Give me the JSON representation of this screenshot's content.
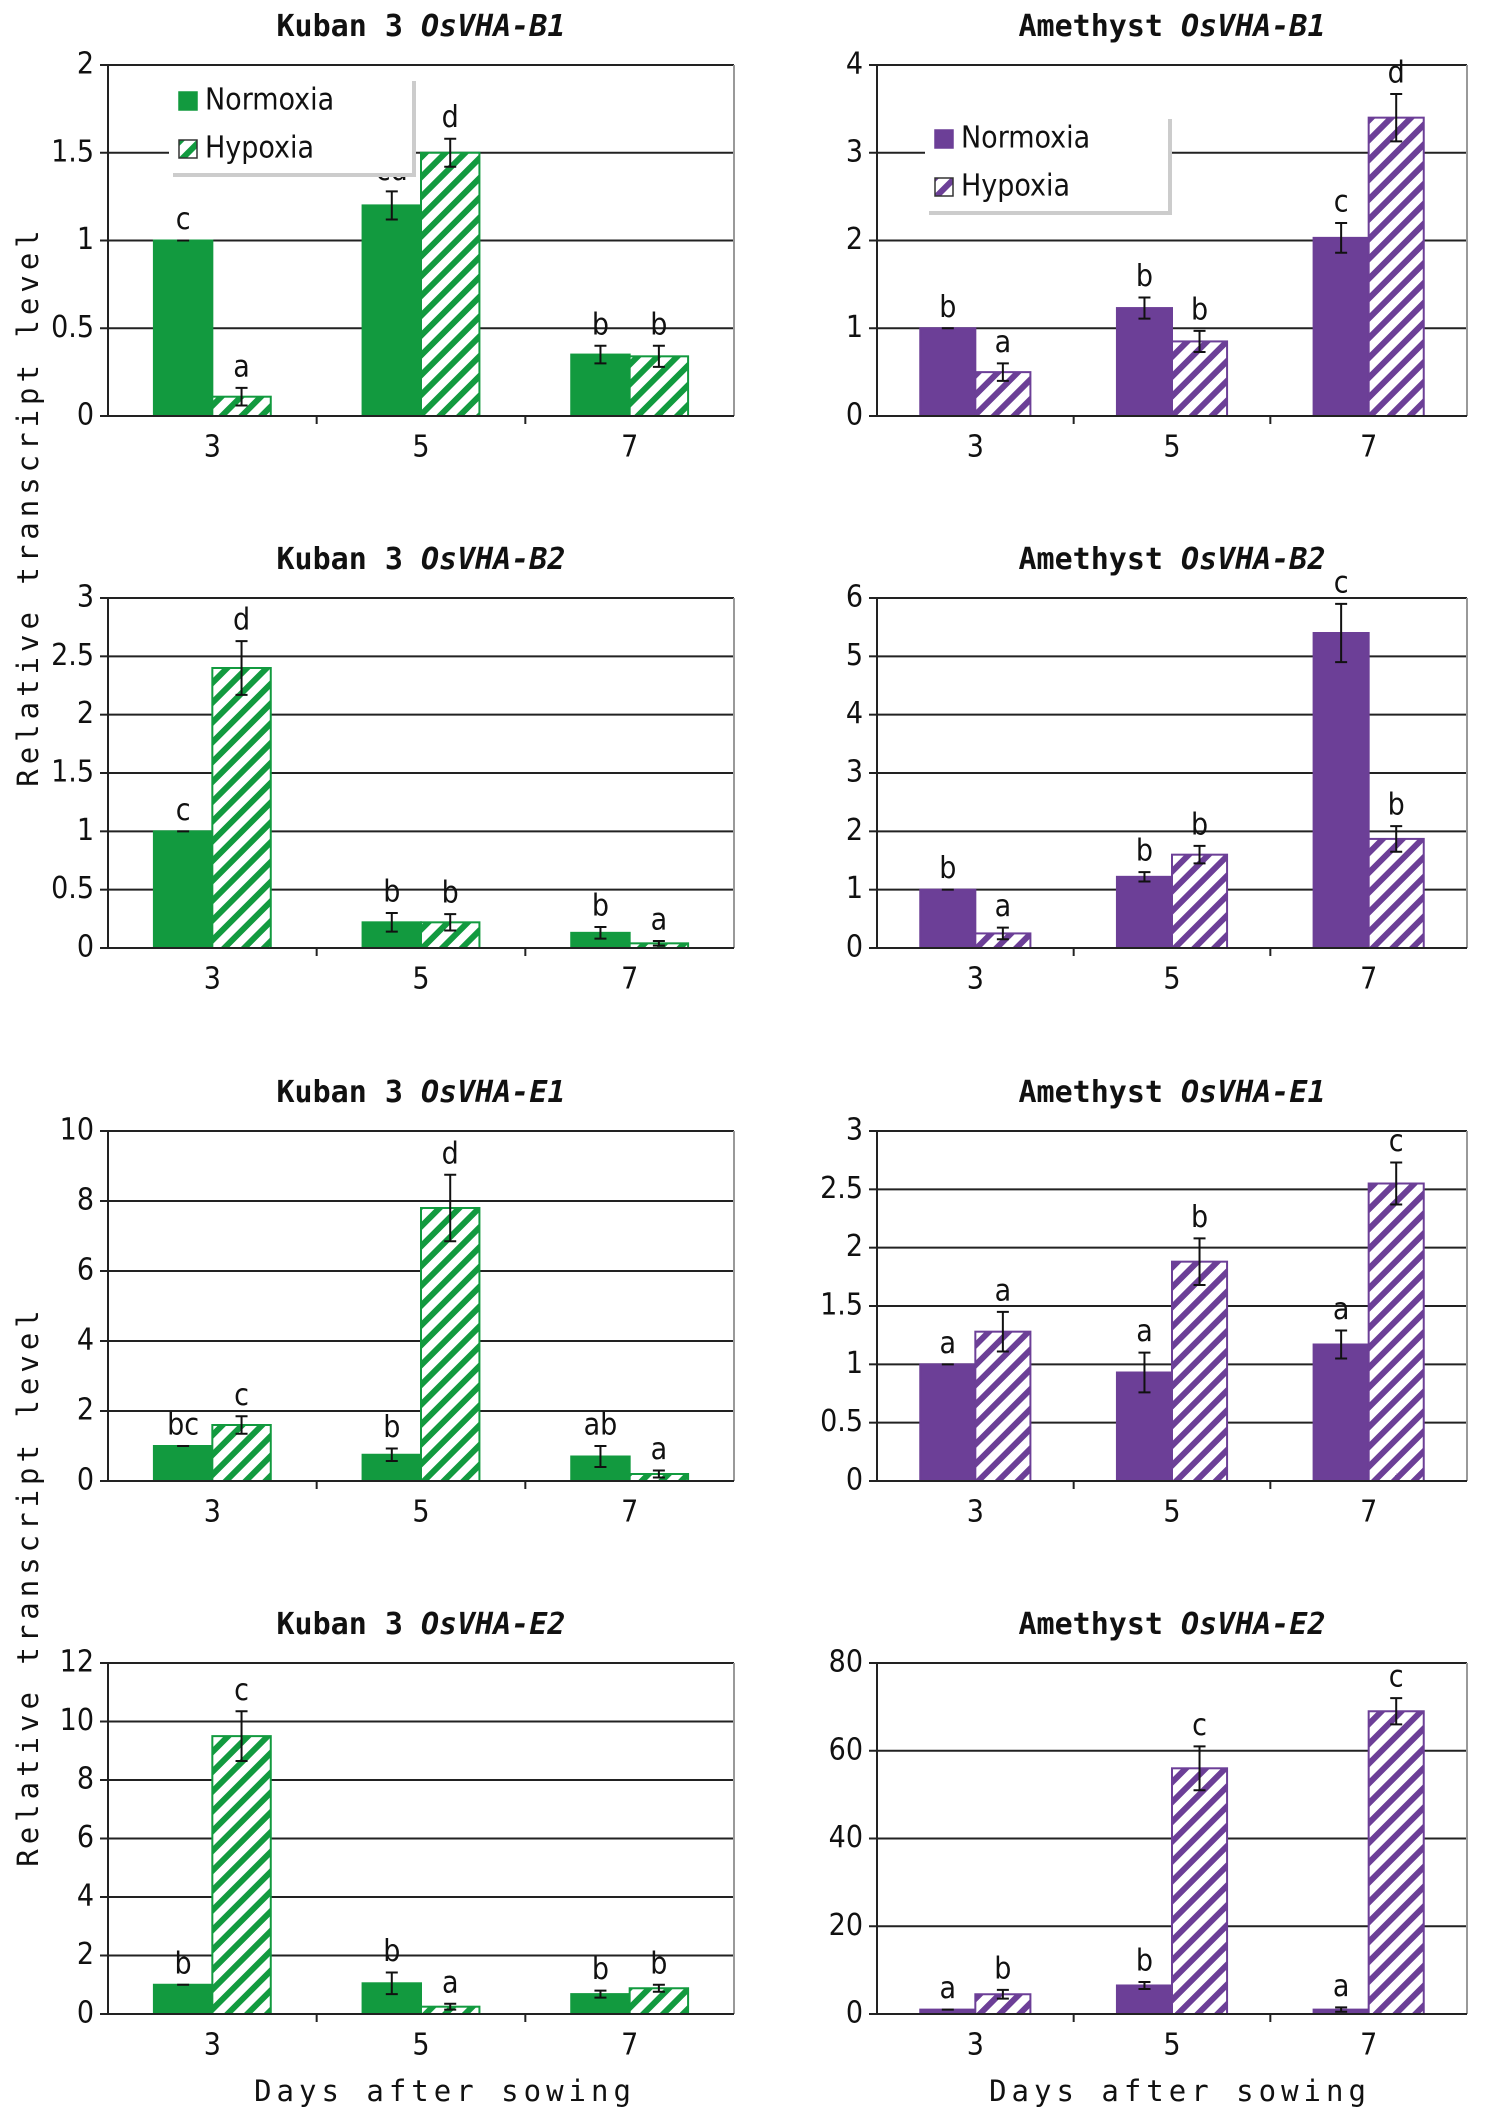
{
  "y_axis_label": "Relative transcript level",
  "x_axis_label": "Days after sowing",
  "chart_data": [
    {
      "type": "bar",
      "title": [
        "Kuban 3",
        "OsVHA-B1"
      ],
      "categories": [
        "3",
        "5",
        "7"
      ],
      "ylim": [
        0,
        2
      ],
      "yticks": [
        0,
        0.5,
        1,
        1.5,
        2
      ],
      "grid": true,
      "legend": "upper left",
      "series": [
        {
          "name": "Normoxia",
          "color": "#129a3f",
          "values": [
            1,
            1.2,
            0.35
          ],
          "errors": [
            0,
            0.08,
            0.05
          ],
          "annotations": [
            "c",
            "cd",
            "b"
          ]
        },
        {
          "name": "Hypoxia",
          "color": "#129a3f",
          "hatch": true,
          "values": [
            0.11,
            1.5,
            0.34
          ],
          "errors": [
            0.05,
            0.08,
            0.06
          ],
          "annotations": [
            "a",
            "d",
            "b"
          ]
        }
      ]
    },
    {
      "type": "bar",
      "title": [
        "Amethyst",
        "OsVHA-B1"
      ],
      "categories": [
        "3",
        "5",
        "7"
      ],
      "ylim": [
        0,
        4
      ],
      "yticks": [
        0,
        1,
        2,
        3,
        4
      ],
      "grid": true,
      "legend": "upper left",
      "series": [
        {
          "name": "Normoxia",
          "color": "#6c3f97",
          "values": [
            1,
            1.23,
            2.03
          ],
          "errors": [
            0,
            0.12,
            0.17
          ],
          "annotations": [
            "b",
            "b",
            "c"
          ]
        },
        {
          "name": "Hypoxia",
          "color": "#6c3f97",
          "hatch": true,
          "values": [
            0.5,
            0.85,
            3.4
          ],
          "errors": [
            0.1,
            0.12,
            0.27
          ],
          "annotations": [
            "a",
            "b",
            "d"
          ]
        }
      ]
    },
    {
      "type": "bar",
      "title": [
        "Kuban 3",
        "OsVHA-B2"
      ],
      "categories": [
        "3",
        "5",
        "7"
      ],
      "ylim": [
        0,
        3
      ],
      "yticks": [
        0,
        0.5,
        1,
        1.5,
        2,
        2.5,
        3
      ],
      "grid": true,
      "series": [
        {
          "color": "#129a3f",
          "values": [
            1,
            0.22,
            0.13
          ],
          "errors": [
            0,
            0.08,
            0.05
          ],
          "annotations": [
            "c",
            "b",
            "b"
          ]
        },
        {
          "color": "#129a3f",
          "hatch": true,
          "values": [
            2.4,
            0.22,
            0.04
          ],
          "errors": [
            0.23,
            0.07,
            0.02
          ],
          "annotations": [
            "d",
            "b",
            "a"
          ]
        }
      ]
    },
    {
      "type": "bar",
      "title": [
        "Amethyst",
        "OsVHA-B2"
      ],
      "categories": [
        "3",
        "5",
        "7"
      ],
      "ylim": [
        0,
        6
      ],
      "yticks": [
        0,
        1,
        2,
        3,
        4,
        5,
        6
      ],
      "grid": true,
      "series": [
        {
          "color": "#6c3f97",
          "values": [
            1,
            1.22,
            5.4
          ],
          "errors": [
            0,
            0.08,
            0.5
          ],
          "annotations": [
            "b",
            "b",
            "c"
          ]
        },
        {
          "color": "#6c3f97",
          "hatch": true,
          "values": [
            0.25,
            1.6,
            1.87
          ],
          "errors": [
            0.1,
            0.15,
            0.22
          ],
          "annotations": [
            "a",
            "b",
            "b"
          ]
        }
      ]
    },
    {
      "type": "bar",
      "title": [
        "Kuban 3",
        "OsVHA-E1"
      ],
      "categories": [
        "3",
        "5",
        "7"
      ],
      "ylim": [
        0,
        10
      ],
      "yticks": [
        0,
        2,
        4,
        6,
        8,
        10
      ],
      "grid": true,
      "series": [
        {
          "color": "#129a3f",
          "values": [
            1,
            0.75,
            0.7
          ],
          "errors": [
            0,
            0.18,
            0.3
          ],
          "annotations": [
            "bc",
            "b",
            "ab"
          ]
        },
        {
          "color": "#129a3f",
          "hatch": true,
          "values": [
            1.6,
            7.8,
            0.2
          ],
          "errors": [
            0.25,
            0.95,
            0.1
          ],
          "annotations": [
            "c",
            "d",
            "a"
          ]
        }
      ]
    },
    {
      "type": "bar",
      "title": [
        "Amethyst",
        "OsVHA-E1"
      ],
      "categories": [
        "3",
        "5",
        "7"
      ],
      "ylim": [
        0,
        3
      ],
      "yticks": [
        0,
        0.5,
        1,
        1.5,
        2,
        2.5,
        3
      ],
      "grid": true,
      "series": [
        {
          "color": "#6c3f97",
          "values": [
            1,
            0.93,
            1.17
          ],
          "errors": [
            0,
            0.17,
            0.12
          ],
          "annotations": [
            "a",
            "a",
            "a"
          ]
        },
        {
          "color": "#6c3f97",
          "hatch": true,
          "values": [
            1.28,
            1.88,
            2.55
          ],
          "errors": [
            0.17,
            0.2,
            0.18
          ],
          "annotations": [
            "a",
            "b",
            "c"
          ]
        }
      ]
    },
    {
      "type": "bar",
      "title": [
        "Kuban 3",
        "OsVHA-E2"
      ],
      "categories": [
        "3",
        "5",
        "7"
      ],
      "ylim": [
        0,
        12
      ],
      "yticks": [
        0,
        2,
        4,
        6,
        8,
        10,
        12
      ],
      "grid": true,
      "series": [
        {
          "color": "#129a3f",
          "values": [
            1,
            1.05,
            0.68
          ],
          "errors": [
            0,
            0.37,
            0.12
          ],
          "annotations": [
            "b",
            "b",
            "b"
          ]
        },
        {
          "color": "#129a3f",
          "hatch": true,
          "values": [
            9.5,
            0.25,
            0.88
          ],
          "errors": [
            0.85,
            0.1,
            0.12
          ],
          "annotations": [
            "c",
            "a",
            "b"
          ]
        }
      ]
    },
    {
      "type": "bar",
      "title": [
        "Amethyst",
        "OsVHA-E2"
      ],
      "categories": [
        "3",
        "5",
        "7"
      ],
      "ylim": [
        0,
        80
      ],
      "yticks": [
        0,
        20,
        40,
        60,
        80
      ],
      "grid": true,
      "series": [
        {
          "color": "#6c3f97",
          "values": [
            1,
            6.5,
            1
          ],
          "errors": [
            0,
            0.8,
            0.5
          ],
          "annotations": [
            "a",
            "b",
            "a"
          ]
        },
        {
          "color": "#6c3f97",
          "hatch": true,
          "values": [
            4.5,
            56,
            69
          ],
          "errors": [
            1,
            5,
            3
          ],
          "annotations": [
            "b",
            "c",
            "c"
          ]
        }
      ]
    }
  ]
}
